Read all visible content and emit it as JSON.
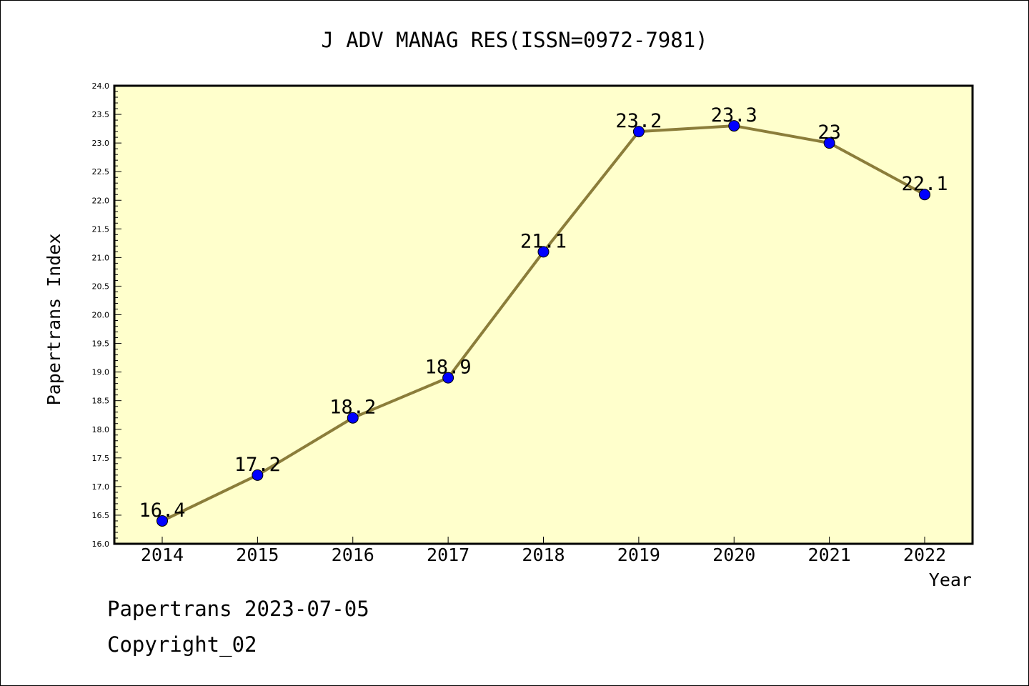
{
  "chart_data": {
    "type": "line",
    "title": "J ADV MANAG RES(ISSN=0972-7981)",
    "xlabel": "Year",
    "ylabel": "Papertrans Index",
    "categories": [
      "2014",
      "2015",
      "2016",
      "2017",
      "2018",
      "2019",
      "2020",
      "2021",
      "2022"
    ],
    "values": [
      16.4,
      17.2,
      18.2,
      18.9,
      21.1,
      23.2,
      23.3,
      23,
      22.1
    ],
    "data_labels": [
      "16.4",
      "17.2",
      "18.2",
      "18.9",
      "21.1",
      "23.2",
      "23.3",
      "23",
      "22.1"
    ],
    "ylim": [
      16.0,
      24.0
    ],
    "yticks": [
      "16.0",
      "16.5",
      "17.0",
      "17.5",
      "18.0",
      "18.5",
      "19.0",
      "19.5",
      "20.0",
      "20.5",
      "21.0",
      "21.5",
      "22.0",
      "22.5",
      "23.0",
      "23.5",
      "24.0"
    ],
    "grid": false,
    "colors": {
      "plot_background": "#ffffcc",
      "line": "#8b7d3a",
      "marker": "#0000ff"
    }
  },
  "footer": {
    "line1": "Papertrans 2023-07-05",
    "line2": "Copyright_02"
  }
}
